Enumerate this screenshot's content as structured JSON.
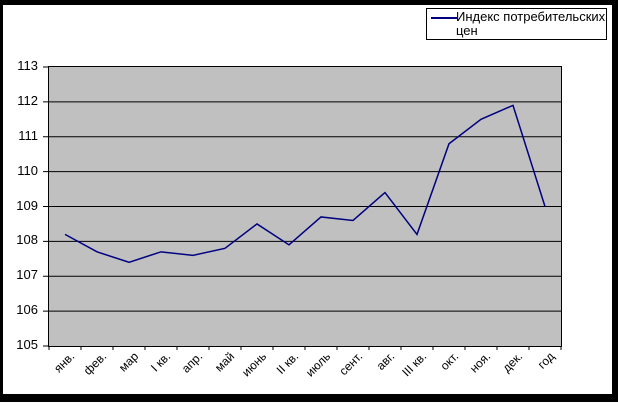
{
  "chart_data": {
    "type": "line",
    "title": "",
    "categories": [
      "янв.",
      "фев.",
      "мар",
      "I кв.",
      "апр.",
      "май",
      "июнь",
      "II кв.",
      "июль",
      "сент.",
      "авг.",
      "III кв.",
      "окт.",
      "ноя.",
      "дек.",
      "год"
    ],
    "series": [
      {
        "name": "Индекс потребительских цен",
        "color": "#000080",
        "values": [
          108.2,
          107.7,
          107.4,
          107.7,
          107.6,
          107.8,
          108.5,
          107.9,
          108.7,
          108.6,
          109.4,
          108.2,
          110.8,
          111.5,
          111.9,
          109.0
        ]
      }
    ],
    "ylim": [
      105,
      113
    ],
    "ytick_step": 1,
    "xlabel": "",
    "ylabel": "",
    "grid": true,
    "xlabel_rotation": 45,
    "legend_position": "top-right",
    "plot_bg": "#c0c0c0",
    "gridline_color": "#000000",
    "frame_color": "#000000"
  }
}
